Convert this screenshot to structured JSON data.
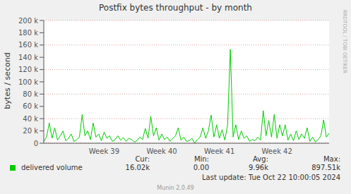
{
  "chart_data": {
    "type": "line",
    "title": "Postfix bytes throughput - by month",
    "y_label": "bytes / second",
    "watermark": "RRDTOOL / TOBI OETIKER",
    "last_update": "Last update: Tue Oct 22 10:00:05 2024",
    "footer": "Munin 2.0.49",
    "grid": true,
    "ylim": [
      0,
      200000
    ],
    "yticks": [
      0,
      {
        "value": 20000,
        "label": "20 k"
      },
      {
        "value": 40000,
        "label": "40 k"
      },
      {
        "value": 60000,
        "label": "60 k"
      },
      {
        "value": 80000,
        "label": "80 k"
      },
      {
        "value": 100000,
        "label": "100 k"
      },
      {
        "value": 120000,
        "label": "120 k"
      },
      {
        "value": 140000,
        "label": "140 k"
      },
      {
        "value": 160000,
        "label": "160 k"
      },
      {
        "value": 180000,
        "label": "180 k"
      },
      {
        "value": 200000,
        "label": "200 k"
      }
    ],
    "categories": [
      null,
      null,
      null,
      null,
      null,
      null,
      null,
      null,
      null,
      null,
      null,
      null,
      null,
      null,
      null,
      null,
      null,
      null,
      null,
      null,
      null,
      null,
      "Week 39",
      null,
      null,
      null,
      null,
      null,
      null,
      null,
      null,
      null,
      null,
      null,
      null,
      null,
      null,
      null,
      null,
      null,
      null,
      null,
      null,
      "Week 40",
      null,
      null,
      null,
      null,
      null,
      null,
      null,
      null,
      null,
      null,
      null,
      null,
      null,
      null,
      null,
      null,
      null,
      null,
      null,
      null,
      "Week 41",
      null,
      null,
      null,
      null,
      null,
      null,
      null,
      null,
      null,
      null,
      null,
      null,
      null,
      null,
      null,
      null,
      null,
      null,
      null,
      null,
      "Week 42",
      null,
      null,
      null,
      null,
      null,
      null,
      null,
      null,
      null,
      null,
      null,
      null,
      null,
      null,
      null,
      null,
      null,
      null,
      null
    ],
    "series": [
      {
        "name": "delivered volume",
        "color": "#00cc00",
        "values": [
          3000,
          10000,
          33000,
          8000,
          25000,
          5000,
          12000,
          20000,
          4000,
          8000,
          15000,
          3000,
          6000,
          10000,
          47000,
          12000,
          20000,
          6000,
          33000,
          10000,
          15000,
          4000,
          18000,
          8000,
          12000,
          3000,
          6000,
          12000,
          5000,
          9000,
          3000,
          8000,
          6000,
          2000,
          4000,
          10000,
          6000,
          24000,
          8000,
          44000,
          12000,
          25000,
          5000,
          15000,
          6000,
          10000,
          3000,
          8000,
          12000,
          25000,
          5000,
          10000,
          3000,
          4000,
          8000,
          0,
          6000,
          10000,
          25000,
          8000,
          20000,
          46000,
          10000,
          30000,
          8000,
          22000,
          5000,
          30000,
          153000,
          10000,
          30000,
          6000,
          20000,
          8000,
          12000,
          3000,
          6000,
          4000,
          10000,
          5000,
          53000,
          12000,
          37000,
          10000,
          47000,
          8000,
          30000,
          12000,
          30000,
          5000,
          15000,
          4000,
          20000,
          6000,
          15000,
          8000,
          25000,
          3000,
          10000,
          2000,
          6000,
          12000,
          38000,
          10000,
          16020
        ],
        "stats": [
          {
            "label": "Cur:",
            "value": 16020,
            "text": "16.02k"
          },
          {
            "label": "Min:",
            "value": 0,
            "text": "0.00"
          },
          {
            "label": "Avg:",
            "value": 9960,
            "text": "9.96k"
          },
          {
            "label": "Max:",
            "value": 897510,
            "text": "897.51k"
          }
        ]
      }
    ]
  }
}
